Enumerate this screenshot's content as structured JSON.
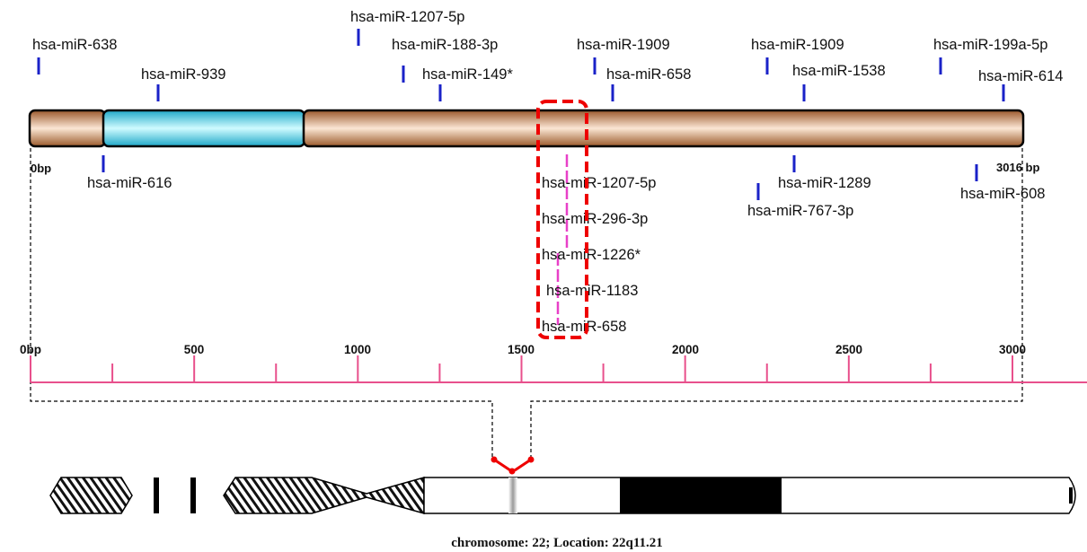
{
  "gene_bar": {
    "start_label": "0bp",
    "end_label": "3016 bp",
    "colors": {
      "utr": "#b97a4d",
      "cds": "#3fc6dc",
      "outline": "#000000",
      "marker": "#1a22c8",
      "highlight_marker": "#e840c8",
      "highlight_box": "#ee0000"
    }
  },
  "mirnas_above": [
    {
      "label": "hsa-miR-638",
      "position_bp": 25
    },
    {
      "label": "hsa-miR-1207-5p",
      "position_bp": 1000
    },
    {
      "label": "hsa-miR-939",
      "position_bp": 390
    },
    {
      "label": "hsa-miR-188-3p",
      "position_bp": 1140
    },
    {
      "label": "hsa-miR-149*",
      "position_bp": 1250
    },
    {
      "label": "hsa-miR-1909",
      "position_bp": 1730
    },
    {
      "label": "hsa-miR-658",
      "position_bp": 1780
    },
    {
      "label": "hsa-miR-1909",
      "position_bp": 2240
    },
    {
      "label": "hsa-miR-1538",
      "position_bp": 2350
    },
    {
      "label": "hsa-miR-199a-5p",
      "position_bp": 2780
    },
    {
      "label": "hsa-miR-614",
      "position_bp": 2970
    }
  ],
  "mirnas_below": [
    {
      "label": "hsa-miR-616",
      "position_bp": 220
    },
    {
      "label": "hsa-miR-1289",
      "position_bp": 2320
    },
    {
      "label": "hsa-miR-767-3p",
      "position_bp": 2210
    },
    {
      "label": "hsa-miR-608",
      "position_bp": 2900
    }
  ],
  "highlighted_cluster": [
    {
      "label": "hsa-miR-1207-5p"
    },
    {
      "label": "hsa-miR-296-3p"
    },
    {
      "label": "hsa-miR-1226*"
    },
    {
      "label": "hsa-miR-1183"
    },
    {
      "label": "hsa-miR-658"
    }
  ],
  "axis": {
    "ticks": [
      {
        "value": 0,
        "label": "0bp"
      },
      {
        "value": 500,
        "label": "500"
      },
      {
        "value": 1000,
        "label": "1000"
      },
      {
        "value": 1500,
        "label": "1500"
      },
      {
        "value": 2000,
        "label": "2000"
      },
      {
        "value": 2500,
        "label": "2500"
      },
      {
        "value": 3000,
        "label": "3000"
      }
    ],
    "minor_ticks": [
      250,
      750,
      1250,
      1750,
      2250,
      2750
    ],
    "color": "#e8508c"
  },
  "chromosome": {
    "caption": "chromosome: 22; Location: 22q11.21",
    "band_color": "#000000",
    "pointer_color": "#ee0000"
  }
}
